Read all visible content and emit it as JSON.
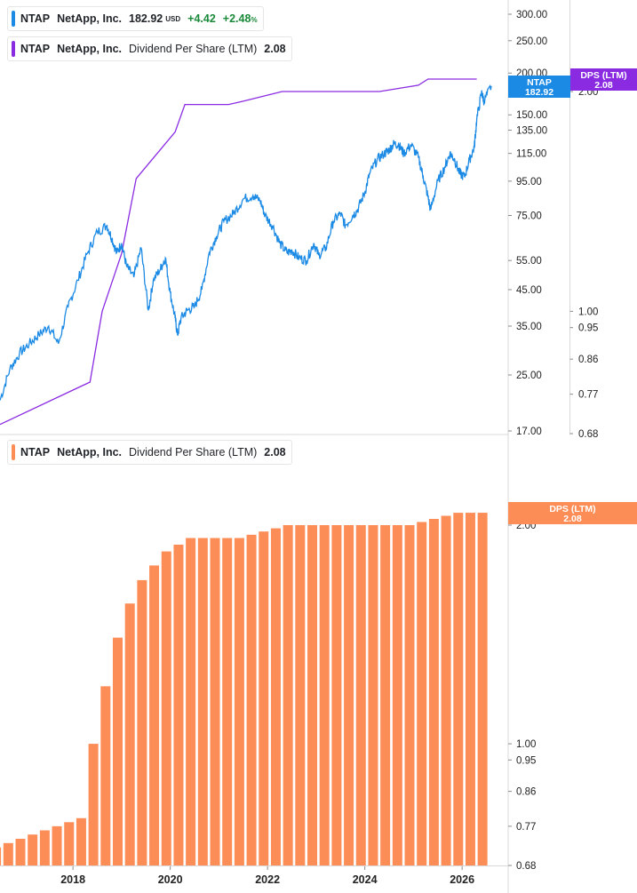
{
  "legends": {
    "price": {
      "ticker": "NTAP",
      "company": "NetApp, Inc.",
      "price": "182.92",
      "currency": "USD",
      "change": "+4.42",
      "change_pct": "+2.48",
      "pct_sign": "%"
    },
    "dps_top": {
      "ticker": "NTAP",
      "company": "NetApp, Inc.",
      "metric": "Dividend Per Share (LTM)",
      "value": "2.08"
    },
    "dps_bottom": {
      "ticker": "NTAP",
      "company": "NetApp, Inc.",
      "metric": "Dividend Per Share (LTM)",
      "value": "2.08"
    }
  },
  "badges": {
    "price": {
      "line1": "NTAP",
      "line2": "182.92"
    },
    "dps_top": {
      "line1": "DPS (LTM)",
      "line2": "2.08"
    },
    "dps_bottom": {
      "line1": "DPS (LTM)",
      "line2": "2.08"
    }
  },
  "colors": {
    "price_line": "#1b8ae5",
    "dps_line": "#8a2be2",
    "bars": "#fc8d57",
    "badge_price": "#1b8ae5",
    "badge_dps_top": "#8a2be2",
    "badge_dps_bottom": "#fc8d57",
    "price_legend_swatch": "#1b8ae5",
    "dps_legend_swatch_top": "#8a2be2",
    "dps_legend_swatch_bottom": "#fc8d57",
    "change_positive": "#1a8a3a"
  },
  "chart_data": [
    {
      "type": "line",
      "series": [
        {
          "name": "NTAP",
          "x": [
            "2016.5",
            "2016.7",
            "2016.9",
            "2017.1",
            "2017.3",
            "2017.5",
            "2017.7",
            "2017.9",
            "2018.1",
            "2018.3",
            "2018.5",
            "2018.7",
            "2018.8",
            "2018.9",
            "2019.0",
            "2019.1",
            "2019.25",
            "2019.4",
            "2019.55",
            "2019.65",
            "2019.8",
            "2019.9",
            "2020.0",
            "2020.1",
            "2020.15",
            "2020.22",
            "2020.35",
            "2020.5",
            "2020.65",
            "2020.8",
            "2020.95",
            "2021.1",
            "2021.3",
            "2021.5",
            "2021.7",
            "2021.85",
            "2021.95",
            "2022.1",
            "2022.25",
            "2022.4",
            "2022.5",
            "2022.65",
            "2022.8",
            "2022.95",
            "2023.05",
            "2023.2",
            "2023.35",
            "2023.5",
            "2023.6",
            "2023.75",
            "2023.85",
            "2024.0",
            "2024.1",
            "2024.25",
            "2024.4",
            "2024.5",
            "2024.6",
            "2024.7",
            "2024.8",
            "2024.95",
            "2025.1",
            "2025.2",
            "2025.3",
            "2025.35",
            "2025.5",
            "2025.65",
            "2025.75",
            "2025.85",
            "2025.95",
            "2026.05",
            "2026.15",
            "2026.25",
            "2026.3",
            "2026.4",
            "2026.45",
            "2026.6"
          ],
          "values": [
            21,
            26,
            29,
            31,
            33,
            35,
            31,
            40,
            48,
            58,
            67,
            70,
            64,
            58,
            62,
            53,
            49,
            60,
            39,
            48,
            52,
            56,
            44,
            37,
            33,
            37,
            39,
            40,
            45,
            58,
            65,
            72,
            76,
            84,
            86,
            83,
            75,
            70,
            62,
            58,
            59,
            56,
            55,
            62,
            57,
            60,
            72,
            76,
            70,
            75,
            78,
            88,
            100,
            110,
            115,
            118,
            123,
            122,
            115,
            122,
            112,
            98,
            85,
            78,
            95,
            105,
            115,
            110,
            100,
            98,
            110,
            120,
            145,
            175,
            165,
            182.92
          ]
        },
        {
          "name": "DPS (LTM)",
          "x": [
            "2016.5",
            "2018.0",
            "2018.35",
            "2018.6",
            "2019.0",
            "2019.3",
            "2020.1",
            "2020.3",
            "2021.2",
            "2021.5",
            "2022.3",
            "2022.5",
            "2024.3",
            "2025.1",
            "2025.3",
            "2026.3"
          ],
          "values": [
            0.7,
            0.78,
            0.8,
            1.0,
            1.2,
            1.52,
            1.76,
            1.92,
            1.92,
            1.94,
            2.0,
            2.0,
            2.0,
            2.04,
            2.08,
            2.08
          ]
        }
      ],
      "ylim": [
        17,
        320
      ],
      "y_ticks": [
        "300.00",
        "250.00",
        "200.00",
        "150.00",
        "135.00",
        "115.00",
        "95.00",
        "75.00",
        "55.00",
        "45.00",
        "35.00",
        "25.00",
        "17.00"
      ],
      "secondary_y_ticks": [
        "2.00",
        "1.00",
        "0.95",
        "0.86",
        "0.77",
        "0.68"
      ],
      "secondary_ylim": [
        0.68,
        2.2
      ],
      "y_scale": "log",
      "grid": false
    },
    {
      "type": "bar",
      "series": [
        {
          "name": "DPS (LTM)",
          "x": [
            "2016.42",
            "2016.67",
            "2016.92",
            "2017.17",
            "2017.42",
            "2017.67",
            "2017.92",
            "2018.17",
            "2018.42",
            "2018.67",
            "2018.92",
            "2019.17",
            "2019.42",
            "2019.67",
            "2019.92",
            "2020.17",
            "2020.42",
            "2020.67",
            "2020.92",
            "2021.17",
            "2021.42",
            "2021.67",
            "2021.92",
            "2022.17",
            "2022.42",
            "2022.67",
            "2022.92",
            "2023.17",
            "2023.42",
            "2023.67",
            "2023.92",
            "2024.17",
            "2024.42",
            "2024.67",
            "2024.92",
            "2025.17",
            "2025.42",
            "2025.67",
            "2025.92",
            "2026.17",
            "2026.42"
          ],
          "values": [
            0.72,
            0.73,
            0.74,
            0.75,
            0.76,
            0.77,
            0.78,
            0.79,
            1.0,
            1.2,
            1.4,
            1.56,
            1.68,
            1.76,
            1.84,
            1.88,
            1.92,
            1.92,
            1.92,
            1.92,
            1.92,
            1.94,
            1.96,
            1.98,
            2.0,
            2.0,
            2.0,
            2.0,
            2.0,
            2.0,
            2.0,
            2.0,
            2.0,
            2.0,
            2.0,
            2.02,
            2.04,
            2.06,
            2.08,
            2.08,
            2.08
          ]
        }
      ],
      "y_ticks": [
        "2.00",
        "1.00",
        "0.95",
        "0.86",
        "0.77",
        "0.68"
      ],
      "ylim": [
        0.68,
        2.2
      ],
      "y_scale": "log",
      "x_ticks": [
        "2018",
        "2020",
        "2022",
        "2024",
        "2026"
      ],
      "grid": false
    }
  ]
}
